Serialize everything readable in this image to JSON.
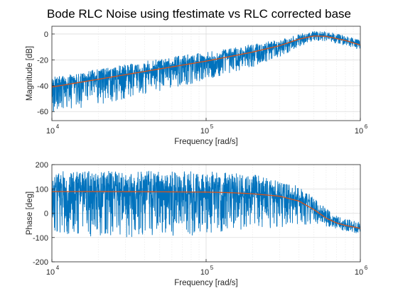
{
  "figure": {
    "title": "Bode RLC Noise using tfestimate vs RLC corrected base"
  },
  "chart_data": [
    {
      "type": "line",
      "panel": "magnitude",
      "xlabel": "Frequency [rad/s]",
      "ylabel": "Magnitude [dB]",
      "xscale": "log",
      "xlim": [
        10000,
        1000000
      ],
      "ylim": [
        -67,
        6
      ],
      "x_ticks": [
        10000,
        100000,
        1000000
      ],
      "x_tick_labels": [
        {
          "base": "10",
          "exp": "4"
        },
        {
          "base": "10",
          "exp": "5"
        },
        {
          "base": "10",
          "exp": "6"
        }
      ],
      "y_ticks": [
        -60,
        -40,
        -20,
        0
      ],
      "y_tick_labels": [
        "-60",
        "-40",
        "-20",
        "0"
      ],
      "grid": true,
      "series": [
        {
          "color": "#0072BD",
          "style": "noisy",
          "x": [
            10000,
            20000,
            50000,
            100000,
            200000,
            300000,
            400000,
            500000,
            600000,
            700000,
            800000,
            1000000
          ],
          "y": [
            -41,
            -35,
            -27,
            -21,
            -14,
            -9,
            -4,
            -1.5,
            -1.8,
            -3.5,
            -5,
            -8.5
          ],
          "spread_low": [
            -20,
            -20,
            -17,
            -15,
            -12,
            -9,
            -6,
            -4,
            -4,
            -4,
            -4,
            -4
          ],
          "spread_high": [
            8,
            8,
            8,
            7,
            6,
            5,
            4,
            4,
            4,
            4,
            4,
            4
          ]
        },
        {
          "color": "#D95319",
          "style": "smooth",
          "x": [
            10000,
            20000,
            50000,
            100000,
            200000,
            300000,
            400000,
            500000,
            600000,
            700000,
            800000,
            1000000
          ],
          "y": [
            -41,
            -35,
            -27,
            -21,
            -14,
            -9,
            -4,
            -1.5,
            -1.8,
            -3.5,
            -5,
            -8.5
          ]
        }
      ]
    },
    {
      "type": "line",
      "panel": "phase",
      "xlabel": "Frequency [rad/s]",
      "ylabel": "Phase [deg]",
      "xscale": "log",
      "xlim": [
        10000,
        1000000
      ],
      "ylim": [
        -200,
        200
      ],
      "x_ticks": [
        10000,
        100000,
        1000000
      ],
      "x_tick_labels": [
        {
          "base": "10",
          "exp": "4"
        },
        {
          "base": "10",
          "exp": "5"
        },
        {
          "base": "10",
          "exp": "6"
        }
      ],
      "y_ticks": [
        -200,
        -100,
        0,
        100,
        200
      ],
      "y_tick_labels": [
        "-200",
        "-100",
        "0",
        "100",
        "200"
      ],
      "grid": true,
      "series": [
        {
          "color": "#0072BD",
          "style": "noisy",
          "x": [
            10000,
            20000,
            50000,
            100000,
            150000,
            200000,
            300000,
            400000,
            500000,
            600000,
            700000,
            800000,
            1000000
          ],
          "y": [
            89,
            89,
            88,
            87,
            84,
            80,
            70,
            50,
            15,
            -20,
            -40,
            -50,
            -62
          ],
          "spread_low": [
            -185,
            -190,
            -185,
            -180,
            -165,
            -150,
            -130,
            -100,
            -60,
            -35,
            -25,
            -25,
            -25
          ],
          "spread_high": [
            85,
            85,
            85,
            85,
            85,
            80,
            70,
            60,
            50,
            40,
            30,
            30,
            30
          ]
        },
        {
          "color": "#D95319",
          "style": "smooth",
          "x": [
            10000,
            20000,
            50000,
            100000,
            150000,
            200000,
            300000,
            400000,
            500000,
            600000,
            700000,
            800000,
            1000000
          ],
          "y": [
            89,
            89,
            88,
            87,
            84,
            80,
            70,
            50,
            15,
            -20,
            -40,
            -50,
            -62
          ]
        }
      ]
    }
  ]
}
